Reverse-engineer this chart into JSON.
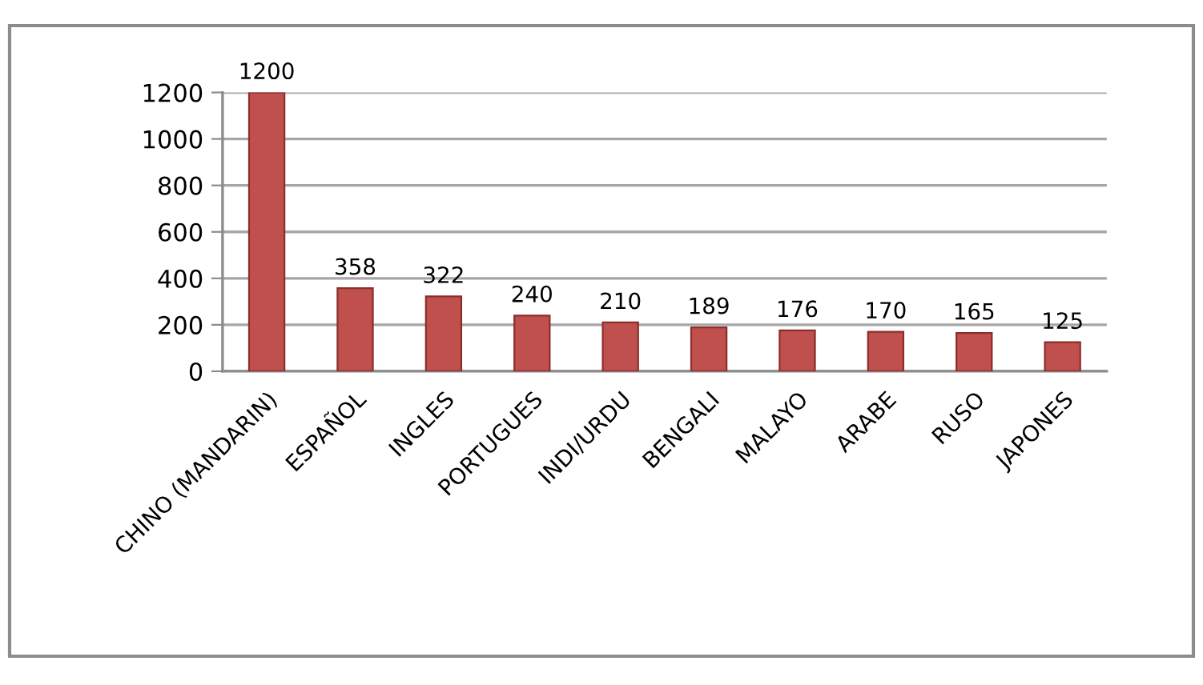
{
  "chart_data": {
    "type": "bar",
    "categories": [
      "CHINO (MANDARIN)",
      "ESPAÑOL",
      "INGLES",
      "PORTUGUES",
      "INDI/URDU",
      "BENGALI",
      "MALAYO",
      "ARABE",
      "RUSO",
      "JAPONES"
    ],
    "values": [
      1200,
      358,
      322,
      240,
      210,
      189,
      176,
      170,
      165,
      125
    ],
    "color": "#c0504d",
    "ylim": [
      0,
      1200
    ],
    "yticks": [
      0,
      200,
      400,
      600,
      800,
      1000,
      1200
    ],
    "grid": "y",
    "data_labels": true
  }
}
